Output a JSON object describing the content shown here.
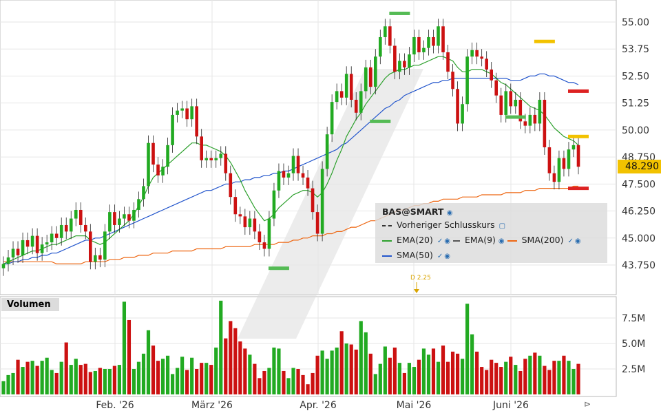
{
  "symbol": "BAS@SMART",
  "legend": {
    "prev_close_label": "Vorheriger Schlusskurs",
    "ema20_label": "EMA(20)",
    "ema9_label": "EMA(9)",
    "sma200_label": "SMA(200)",
    "sma50_label": "SMA(50)"
  },
  "volume_title": "Volumen",
  "last_price": "48.290",
  "event_label": "D 2.25",
  "colors": {
    "up": "#22aa22",
    "down": "#cc1111",
    "ema20": "#2ca02c",
    "sma50": "#2255cc",
    "sma200": "#ee6611",
    "tag": "#f2c200"
  },
  "chart_data": {
    "type": "candlestick",
    "price_axis": {
      "ylim": [
        43.0,
        55.6
      ],
      "ticks": [
        "55.00",
        "53.75",
        "52.50",
        "51.25",
        "50.00",
        "48.750",
        "47.500",
        "46.250",
        "45.000",
        "43.750"
      ]
    },
    "volume_axis": {
      "ylim": [
        0,
        9500000
      ],
      "ticks": [
        "7.5M",
        "5.0M",
        "2.5M"
      ]
    },
    "x_labels": [
      "Feb. '26",
      "März '26",
      "Apr. '26",
      "Mai '26",
      "Juni '26"
    ],
    "closes": [
      43.8,
      44.1,
      44.5,
      44.2,
      44.9,
      44.6,
      45.1,
      44.3,
      44.7,
      44.8,
      45.2,
      45.0,
      45.6,
      45.3,
      45.9,
      46.3,
      45.6,
      45.3,
      43.9,
      44.2,
      44.0,
      45.3,
      46.2,
      45.6,
      45.9,
      46.1,
      45.8,
      46.3,
      46.8,
      47.4,
      49.4,
      48.4,
      47.9,
      48.3,
      49.3,
      50.7,
      50.9,
      51.0,
      50.5,
      51.1,
      49.7,
      48.6,
      48.7,
      48.6,
      48.7,
      48.9,
      48.0,
      46.9,
      46.1,
      46.0,
      45.5,
      45.9,
      45.3,
      44.8,
      44.5,
      45.9,
      47.2,
      48.1,
      47.8,
      48.0,
      48.8,
      48.0,
      47.8,
      47.3,
      46.2,
      45.2,
      48.2,
      49.8,
      51.3,
      51.8,
      51.5,
      52.6,
      51.4,
      50.8,
      51.8,
      52.9,
      52.0,
      53.4,
      54.3,
      54.8,
      53.9,
      52.7,
      53.2,
      52.9,
      53.5,
      54.3,
      53.6,
      53.8,
      54.3,
      53.9,
      54.8,
      53.6,
      52.7,
      51.9,
      50.3,
      51.2,
      53.4,
      53.7,
      53.4,
      53.3,
      52.8,
      52.3,
      51.6,
      50.7,
      51.8,
      51.1,
      51.4,
      50.4,
      50.2,
      50.7,
      50.3,
      51.4,
      49.2,
      48.0,
      47.6,
      48.7,
      48.2,
      49.1,
      49.3,
      48.3
    ],
    "volumes_millions": [
      1.3,
      1.9,
      2.1,
      3.4,
      2.7,
      3.2,
      3.3,
      2.8,
      3.3,
      3.6,
      2.4,
      2.1,
      3.2,
      5.1,
      2.9,
      3.5,
      2.9,
      3.0,
      2.2,
      2.3,
      2.6,
      2.5,
      2.5,
      2.8,
      2.9,
      9.1,
      7.3,
      2.5,
      3.2,
      4.0,
      6.3,
      4.8,
      3.3,
      3.5,
      3.8,
      2.0,
      2.6,
      3.7,
      2.4,
      3.6,
      2.5,
      3.1,
      3.1,
      2.9,
      4.6,
      9.2,
      5.5,
      7.2,
      6.5,
      5.2,
      4.5,
      3.9,
      3.0,
      1.6,
      2.3,
      2.6,
      4.6,
      4.5,
      2.3,
      1.6,
      2.6,
      2.5,
      1.9,
      1.0,
      2.1,
      3.8,
      4.3,
      3.5,
      4.3,
      4.6,
      6.2,
      5.0,
      4.9,
      4.4,
      7.2,
      6.1,
      4.0,
      2.0,
      3.0,
      4.7,
      3.6,
      4.6,
      3.1,
      2.1,
      3.1,
      2.7,
      3.4,
      4.5,
      3.9,
      4.5,
      3.2,
      4.8,
      3.2,
      4.2,
      4.0,
      3.5,
      8.9,
      5.9,
      4.2,
      2.7,
      2.4,
      3.4,
      3.1,
      2.7,
      3.2,
      3.7,
      2.9,
      2.3,
      3.5,
      3.8,
      4.1,
      3.8,
      2.8,
      2.4,
      3.3,
      3.3,
      3.8,
      3.3,
      2.5,
      3.0
    ],
    "ema20": [
      43.8,
      43.9,
      44.0,
      44.1,
      44.2,
      44.3,
      44.4,
      44.4,
      44.5,
      44.6,
      44.7,
      44.7,
      44.8,
      44.9,
      45.0,
      45.1,
      45.1,
      45.1,
      44.9,
      44.8,
      44.7,
      44.8,
      45.0,
      45.2,
      45.4,
      45.6,
      45.8,
      46.1,
      46.5,
      46.9,
      47.4,
      47.8,
      48.0,
      48.2,
      48.4,
      48.6,
      48.8,
      49.0,
      49.2,
      49.4,
      49.4,
      49.3,
      49.3,
      49.2,
      49.1,
      49.0,
      48.8,
      48.5,
      48.1,
      47.7,
      47.2,
      46.8,
      46.4,
      46.1,
      45.8,
      45.9,
      46.1,
      46.4,
      46.6,
      46.8,
      47.0,
      47.1,
      47.2,
      47.2,
      47.1,
      46.9,
      47.1,
      47.5,
      48.0,
      48.6,
      49.1,
      49.7,
      50.1,
      50.5,
      50.8,
      51.2,
      51.5,
      51.8,
      52.1,
      52.4,
      52.6,
      52.7,
      52.8,
      52.8,
      52.9,
      53.0,
      53.0,
      53.1,
      53.2,
      53.3,
      53.4,
      53.4,
      53.3,
      53.2,
      52.9,
      52.7,
      52.7,
      52.8,
      52.8,
      52.8,
      52.7,
      52.6,
      52.4,
      52.2,
      52.1,
      51.9,
      51.7,
      51.5,
      51.3,
      51.1,
      51.0,
      50.9,
      50.7,
      50.4,
      50.1,
      49.9,
      49.7,
      49.6,
      49.5,
      49.3
    ],
    "sma50": [
      43.8,
      43.8,
      43.9,
      43.9,
      44.0,
      44.0,
      44.1,
      44.1,
      44.2,
      44.2,
      44.3,
      44.3,
      44.4,
      44.5,
      44.6,
      44.7,
      44.8,
      44.9,
      44.9,
      45.0,
      45.0,
      45.1,
      45.2,
      45.3,
      45.4,
      45.5,
      45.6,
      45.7,
      45.8,
      45.9,
      46.0,
      46.1,
      46.2,
      46.3,
      46.4,
      46.5,
      46.6,
      46.7,
      46.8,
      46.9,
      47.0,
      47.1,
      47.2,
      47.2,
      47.3,
      47.4,
      47.5,
      47.5,
      47.6,
      47.6,
      47.7,
      47.7,
      47.8,
      47.8,
      47.9,
      47.9,
      48.0,
      48.0,
      48.1,
      48.1,
      48.2,
      48.3,
      48.4,
      48.5,
      48.6,
      48.7,
      48.8,
      48.9,
      49.0,
      49.1,
      49.3,
      49.4,
      49.6,
      49.8,
      50.0,
      50.2,
      50.4,
      50.6,
      50.8,
      51.0,
      51.1,
      51.3,
      51.4,
      51.6,
      51.7,
      51.8,
      51.9,
      52.0,
      52.1,
      52.2,
      52.2,
      52.3,
      52.3,
      52.4,
      52.4,
      52.4,
      52.4,
      52.4,
      52.4,
      52.4,
      52.4,
      52.4,
      52.4,
      52.4,
      52.4,
      52.3,
      52.3,
      52.3,
      52.4,
      52.5,
      52.5,
      52.6,
      52.6,
      52.5,
      52.5,
      52.4,
      52.3,
      52.2,
      52.2,
      52.1
    ],
    "sma200": [
      43.9,
      43.9,
      43.9,
      43.9,
      43.9,
      43.9,
      43.9,
      43.9,
      43.9,
      43.9,
      43.9,
      43.8,
      43.8,
      43.8,
      43.8,
      43.8,
      43.8,
      43.9,
      43.9,
      43.9,
      43.9,
      43.9,
      44.0,
      44.0,
      44.0,
      44.1,
      44.1,
      44.1,
      44.2,
      44.2,
      44.2,
      44.3,
      44.3,
      44.3,
      44.3,
      44.4,
      44.4,
      44.4,
      44.4,
      44.4,
      44.5,
      44.5,
      44.5,
      44.5,
      44.5,
      44.5,
      44.6,
      44.6,
      44.6,
      44.6,
      44.6,
      44.6,
      44.7,
      44.7,
      44.7,
      44.7,
      44.7,
      44.8,
      44.8,
      44.8,
      44.9,
      44.9,
      45.0,
      45.0,
      45.1,
      45.1,
      45.1,
      45.2,
      45.2,
      45.3,
      45.3,
      45.4,
      45.5,
      45.5,
      45.6,
      45.7,
      45.8,
      45.8,
      45.9,
      46.0,
      46.1,
      46.2,
      46.3,
      46.3,
      46.4,
      46.5,
      46.5,
      46.6,
      46.6,
      46.7,
      46.7,
      46.8,
      46.8,
      46.8,
      46.8,
      46.9,
      46.9,
      46.9,
      46.9,
      47.0,
      47.0,
      47.0,
      47.0,
      47.0,
      47.1,
      47.1,
      47.1,
      47.1,
      47.2,
      47.2,
      47.2,
      47.3,
      47.3,
      47.3,
      47.3,
      47.3,
      47.3,
      47.3,
      47.4,
      47.4
    ],
    "markers": [
      {
        "bar": 57,
        "price": 43.6,
        "color": "green"
      },
      {
        "bar": 82,
        "price": 55.4,
        "color": "green"
      },
      {
        "bar": 78,
        "price": 50.4,
        "color": "green"
      },
      {
        "bar": 106,
        "price": 50.6,
        "color": "green"
      },
      {
        "bar": 112,
        "price": 54.1,
        "color": "gold"
      },
      {
        "bar": 126,
        "price": 49.7,
        "color": "gold"
      },
      {
        "bar": 129,
        "price": 51.8,
        "color": "red"
      },
      {
        "bar": 133,
        "price": 47.3,
        "color": "red"
      }
    ]
  }
}
